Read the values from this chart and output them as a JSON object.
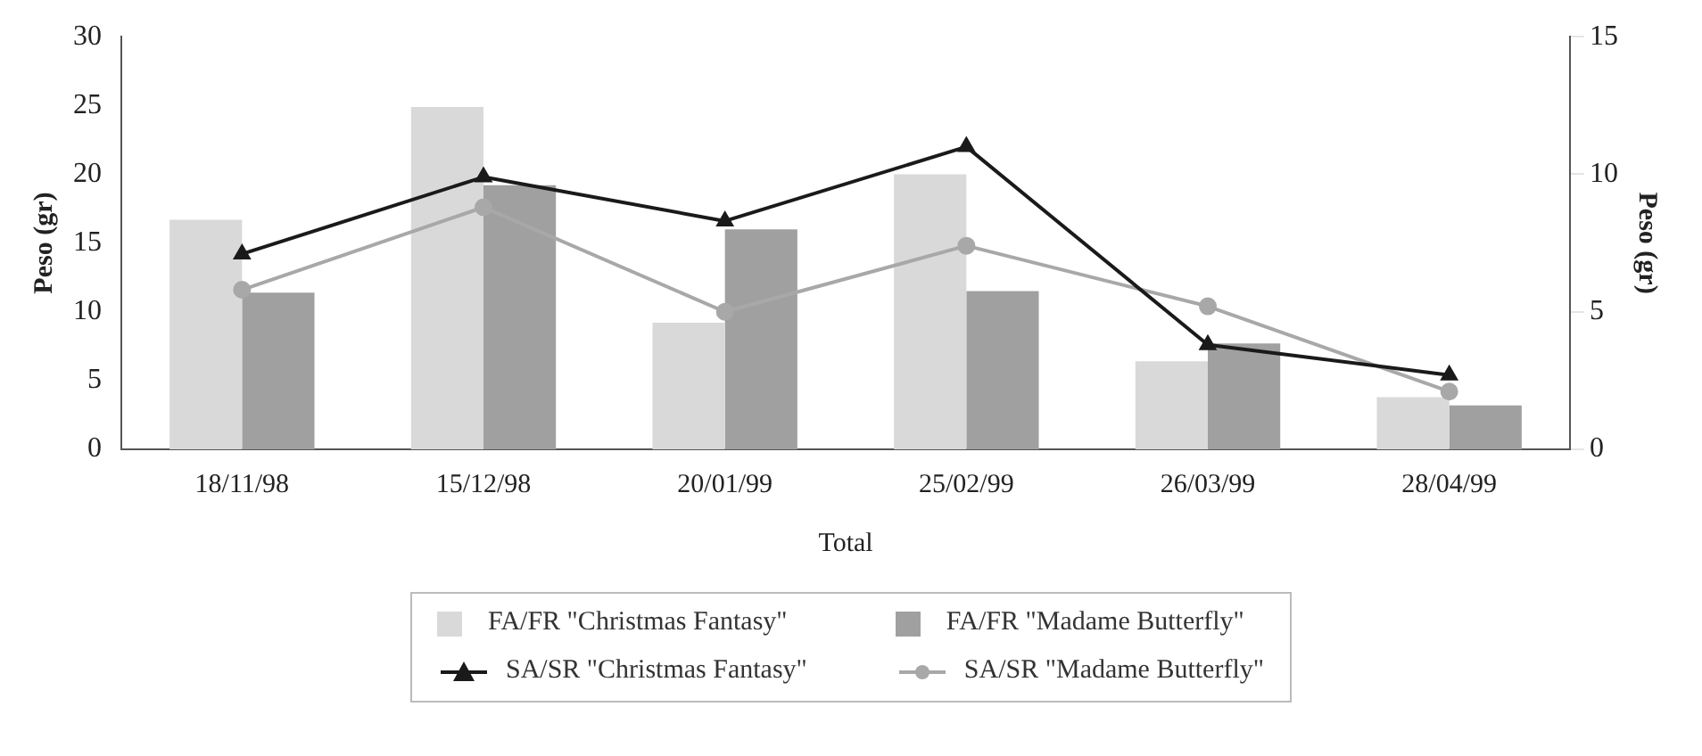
{
  "chart_data": {
    "type": "bar",
    "xlabel": "Total",
    "ylabel": "Peso (gr)",
    "y2label": "Peso (gr)",
    "categories": [
      "18/11/98",
      "15/12/98",
      "20/01/99",
      "25/02/99",
      "26/03/99",
      "28/04/99"
    ],
    "series": [
      {
        "name": "FA/FR \"Christmas Fantasy\"",
        "color": "#d9d9d9",
        "values": [
          16.7,
          24.9,
          9.2,
          20.0,
          6.4,
          3.8
        ]
      },
      {
        "name": "FA/FR \"Madame Butterfly\"",
        "color": "#a0a0a0",
        "values": [
          11.4,
          19.2,
          16.0,
          11.5,
          7.7,
          3.2
        ]
      },
      {
        "name": "SA/SR \"Christmas Fantasy\"",
        "type": "line",
        "axis": "y2",
        "marker": "triangle",
        "color": "#1a1a1a",
        "values": [
          7.1,
          9.9,
          8.3,
          11.0,
          3.8,
          2.7
        ]
      },
      {
        "name": "SA/SR \"Madame Butterfly\"",
        "type": "line",
        "axis": "y2",
        "marker": "circle",
        "color": "#a8a8a8",
        "values": [
          5.8,
          8.8,
          5.0,
          7.4,
          5.2,
          2.1
        ]
      }
    ],
    "ylim": [
      0,
      30
    ],
    "yticks": [
      0,
      5,
      10,
      15,
      20,
      25,
      30
    ],
    "y2lim": [
      0,
      15
    ],
    "y2ticks": [
      0,
      5,
      10,
      15
    ],
    "grid": false,
    "legend": "bottom"
  }
}
